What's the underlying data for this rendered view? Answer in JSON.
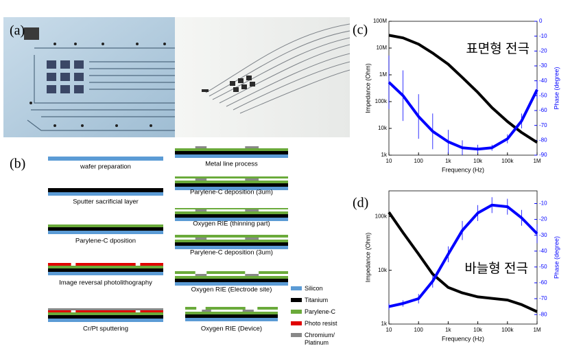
{
  "panel_a": {
    "label": "(a)"
  },
  "panel_b": {
    "label": "(b)",
    "steps": [
      "wafer preparation",
      "Sputter sacrificial layer",
      "Parylene-C dposition",
      "Image reversal photolithography",
      "Cr/Pt sputtering",
      "Metal line process",
      "Parylene-C deposition (3um)",
      "Oxygen RIE (thinning part)",
      "Parylene-C deposition (3um)",
      "Oxygen RIE (Electrode site)",
      "Oxygen RIE (Device)"
    ],
    "legend": [
      {
        "label": "Silicon",
        "color": "#5b9bd5"
      },
      {
        "label": "Titanium",
        "color": "#000000"
      },
      {
        "label": "Parylene-C",
        "color": "#6aaa3a"
      },
      {
        "label": "Photo resist",
        "color": "#e00000"
      },
      {
        "label": "Chromium/ Platinum",
        "color": "#888888"
      }
    ]
  },
  "chart_data": [
    {
      "type": "line",
      "label": "(c)",
      "annotation": "표면형 전극",
      "xlabel": "Frequency (Hz)",
      "ylabel": "Impedance (Ohm)",
      "y2label": "Phase (degree)",
      "xscale": "log",
      "yscale": "log",
      "x": [
        10,
        30,
        100,
        300,
        1000,
        3000,
        10000,
        30000,
        100000,
        300000,
        1000000
      ],
      "xlim": [
        10,
        1000000
      ],
      "xticks": [
        {
          "value": 10,
          "label": "10"
        },
        {
          "value": 100,
          "label": "100"
        },
        {
          "value": 1000,
          "label": "1k"
        },
        {
          "value": 10000,
          "label": "10k"
        },
        {
          "value": 100000,
          "label": "100k"
        },
        {
          "value": 1000000,
          "label": "1M"
        }
      ],
      "ylim": [
        1000,
        100000000
      ],
      "yticks": [
        {
          "value": 1000,
          "label": "1k"
        },
        {
          "value": 10000,
          "label": "10k"
        },
        {
          "value": 100000,
          "label": "100k"
        },
        {
          "value": 1000000,
          "label": "1M"
        },
        {
          "value": 10000000,
          "label": "10M"
        },
        {
          "value": 100000000,
          "label": "100M"
        }
      ],
      "y2lim": [
        -90,
        0
      ],
      "y2ticks": [
        0,
        -10,
        -20,
        -30,
        -40,
        -50,
        -60,
        -70,
        -80,
        -90
      ],
      "series": [
        {
          "color": "#000000",
          "values": [
            30000000,
            24000000,
            14000000,
            6500000,
            2500000,
            800000,
            220000,
            60000,
            18000,
            7000,
            3000
          ]
        },
        {
          "color": "#0000ff",
          "axis": "y2",
          "values": [
            -41,
            -50,
            -64,
            -74,
            -81,
            -85,
            -86,
            -85,
            -79,
            -67,
            -46
          ],
          "errors": [
            18,
            17,
            15,
            12,
            8,
            5,
            3,
            2,
            3,
            5,
            6
          ]
        }
      ]
    },
    {
      "type": "line",
      "label": "(d)",
      "annotation": "바늘형 전극",
      "xlabel": "Frequency (Hz)",
      "ylabel": "Impedance (Ohm)",
      "y2label": "Phase (degree)",
      "xscale": "log",
      "yscale": "log",
      "x": [
        10,
        30,
        100,
        300,
        1000,
        3000,
        10000,
        30000,
        100000,
        300000,
        1000000
      ],
      "xlim": [
        10,
        1000000
      ],
      "xticks": [
        {
          "value": 10,
          "label": "10"
        },
        {
          "value": 100,
          "label": "100"
        },
        {
          "value": 1000,
          "label": "1k"
        },
        {
          "value": 10000,
          "label": "10k"
        },
        {
          "value": 100000,
          "label": "100k"
        },
        {
          "value": 1000000,
          "label": "1M"
        }
      ],
      "ylim": [
        1000,
        300000
      ],
      "yticks": [
        {
          "value": 1000,
          "label": "1k"
        },
        {
          "value": 10000,
          "label": "10k"
        },
        {
          "value": 100000,
          "label": "100k"
        }
      ],
      "y2lim": [
        -86,
        -2
      ],
      "y2ticks": [
        -10,
        -20,
        -30,
        -40,
        -50,
        -60,
        -70,
        -80
      ],
      "series": [
        {
          "color": "#000000",
          "values": [
            120000,
            50000,
            20000,
            8500,
            4800,
            3800,
            3200,
            3000,
            2800,
            2300,
            1700
          ]
        },
        {
          "color": "#0000ff",
          "axis": "y2",
          "values": [
            -75,
            -73,
            -70,
            -59,
            -42,
            -27,
            -16,
            -11,
            -12,
            -19,
            -29
          ],
          "errors": [
            2,
            2,
            3,
            4,
            5,
            6,
            5,
            5,
            5,
            5,
            6
          ]
        }
      ]
    }
  ]
}
